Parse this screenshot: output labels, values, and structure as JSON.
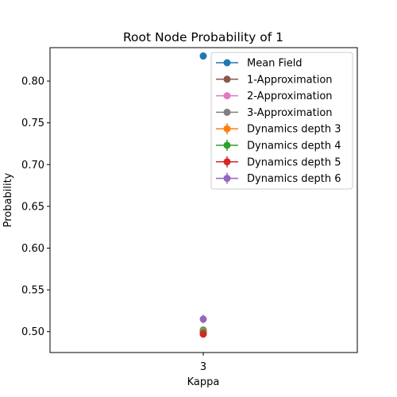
{
  "chart_data": {
    "type": "scatter",
    "title": "Root Node Probability of 1",
    "xlabel": "Kappa",
    "ylabel": "Probability",
    "x_ticks": [
      "3"
    ],
    "y_ticks": [
      "0.50",
      "0.55",
      "0.60",
      "0.65",
      "0.70",
      "0.75",
      "0.80"
    ],
    "ylim": [
      0.475,
      0.84
    ],
    "grid": false,
    "legend_position": "top-right",
    "series": [
      {
        "name": "Mean Field",
        "x": 3,
        "y": 0.83,
        "color": "#1f77b4",
        "error_bar": false
      },
      {
        "name": "1-Approximation",
        "x": 3,
        "y": 0.499,
        "color": "#8c564b",
        "error_bar": false
      },
      {
        "name": "2-Approximation",
        "x": 3,
        "y": 0.501,
        "color": "#e377c2",
        "error_bar": false
      },
      {
        "name": "3-Approximation",
        "x": 3,
        "y": 0.502,
        "color": "#7f7f7f",
        "error_bar": false
      },
      {
        "name": "Dynamics depth 3",
        "x": 3,
        "y": 0.5,
        "color": "#ff7f0e",
        "error_bar": true,
        "err": 0.004
      },
      {
        "name": "Dynamics depth 4",
        "x": 3,
        "y": 0.499,
        "color": "#2ca02c",
        "error_bar": true,
        "err": 0.004
      },
      {
        "name": "Dynamics depth 5",
        "x": 3,
        "y": 0.497,
        "color": "#d62728",
        "error_bar": true,
        "err": 0.004
      },
      {
        "name": "Dynamics depth 6",
        "x": 3,
        "y": 0.515,
        "color": "#9467bd",
        "error_bar": true,
        "err": 0.005
      }
    ]
  }
}
